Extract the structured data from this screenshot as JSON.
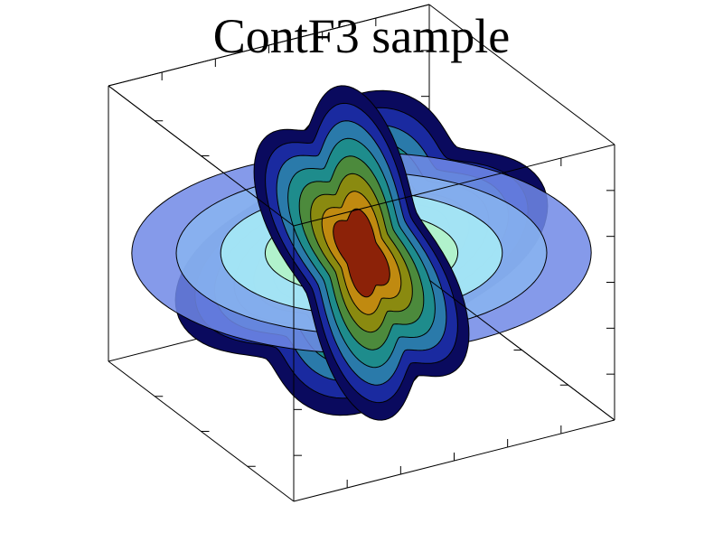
{
  "chart_data": {
    "type": "contour",
    "title": "ContF3 sample",
    "xlabel": "",
    "ylabel": "",
    "zlabel": "",
    "grid": false,
    "legend": "none",
    "colormap": [
      "#0a0a5e",
      "#1a2aa0",
      "#2a7aaa",
      "#1e8c8c",
      "#4c8a3c",
      "#8a8a10",
      "#c08a10",
      "#8c2208"
    ],
    "slice_colormap": [
      "#7088e6",
      "#88b4f0",
      "#a8ecf6",
      "#b4f4c4"
    ],
    "slices": [
      {
        "name": "x-plane",
        "levels": 8
      },
      {
        "name": "y-plane",
        "levels": 8
      },
      {
        "name": "z-plane",
        "levels": 4
      }
    ]
  }
}
